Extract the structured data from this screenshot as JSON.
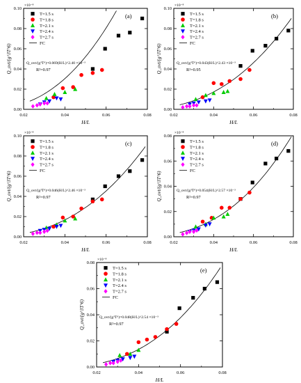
{
  "figure": {
    "xlabel_main": "H/L"
  },
  "chart_data": [
    {
      "id": "a",
      "type": "scatter",
      "panel_label": "(a)",
      "xlabel": "H/L",
      "ylabel": "Q_ovt/(g^3T^6)",
      "y_multiplier": "×10⁻⁸",
      "xlim": [
        0.02,
        0.08
      ],
      "ylim": [
        0.0,
        0.1
      ],
      "xticks": [
        "0.02",
        "0.04",
        "0.06",
        "0.08"
      ],
      "yticks": [
        "0.00",
        "0.02",
        "0.04",
        "0.06",
        "0.08",
        "0.10"
      ],
      "equation": "Q_ovt/(g³T⁶)=0.069(H/L)^2.40 ×10⁻³",
      "r2": "R²=0.97",
      "legend_position": "top-left",
      "series": [
        {
          "name": "T=1.5 s",
          "marker": "square",
          "color": "#000000",
          "x": [
            0.0535,
            0.0595,
            0.066,
            0.0715,
            0.0775
          ],
          "y": [
            0.04,
            0.06,
            0.073,
            0.076,
            0.09
          ]
        },
        {
          "name": "T=1.8 s",
          "marker": "circle",
          "color": "#ff0000",
          "x": [
            0.0345,
            0.039,
            0.044,
            0.048,
            0.0535,
            0.058
          ],
          "y": [
            0.012,
            0.021,
            0.022,
            0.034,
            0.036,
            0.039
          ]
        },
        {
          "name": "T=2.1 s",
          "marker": "triangle-up",
          "color": "#00cc00",
          "x": [
            0.031,
            0.035,
            0.04,
            0.045
          ],
          "y": [
            0.011,
            0.015,
            0.017,
            0.02
          ]
        },
        {
          "name": "T=2.4 s",
          "marker": "triangle-down",
          "color": "#0000ff",
          "x": [
            0.028,
            0.03,
            0.0325,
            0.036,
            0.038
          ],
          "y": [
            0.005,
            0.007,
            0.008,
            0.011,
            0.01
          ]
        },
        {
          "name": "T=2.7 s",
          "marker": "diamond",
          "color": "#ff00ff",
          "x": [
            0.0245,
            0.0265,
            0.028,
            0.03,
            0.0315
          ],
          "y": [
            0.003,
            0.004,
            0.005,
            0.006,
            0.006
          ]
        }
      ],
      "fit": {
        "name": "FC",
        "coef": 0.069,
        "exp": 2.4
      }
    },
    {
      "id": "b",
      "type": "scatter",
      "panel_label": "(b)",
      "xlabel": "H/L",
      "ylabel": "Q_ovt/(g^3T^6)",
      "y_multiplier": "×10⁻⁸",
      "xlim": [
        0.02,
        0.08
      ],
      "ylim": [
        0.0,
        0.1
      ],
      "xticks": [
        "0.02",
        "0.04",
        "0.06",
        "0.08"
      ],
      "yticks": [
        "0.00",
        "0.02",
        "0.04",
        "0.06",
        "0.08",
        "0.10"
      ],
      "equation": "Q_ovt/(g³T⁶)=0.043(H/L)^2.43 ×10⁻³",
      "r2": "R²=0.95",
      "legend_position": "top-left",
      "series": [
        {
          "name": "T=1.5 s",
          "marker": "square",
          "color": "#000000",
          "x": [
            0.0535,
            0.0595,
            0.066,
            0.0715,
            0.0775
          ],
          "y": [
            0.043,
            0.058,
            0.063,
            0.07,
            0.078
          ]
        },
        {
          "name": "T=1.8 s",
          "marker": "circle",
          "color": "#ff0000",
          "x": [
            0.0345,
            0.04,
            0.044,
            0.048,
            0.0535,
            0.058
          ],
          "y": [
            0.012,
            0.026,
            0.025,
            0.028,
            0.03,
            0.039
          ]
        },
        {
          "name": "T=2.1 s",
          "marker": "triangle-up",
          "color": "#00cc00",
          "x": [
            0.031,
            0.036,
            0.04,
            0.045,
            0.047
          ],
          "y": [
            0.01,
            0.014,
            0.016,
            0.017,
            0.018
          ]
        },
        {
          "name": "T=2.4 s",
          "marker": "triangle-down",
          "color": "#0000ff",
          "x": [
            0.028,
            0.03,
            0.0325,
            0.036,
            0.038
          ],
          "y": [
            0.005,
            0.006,
            0.007,
            0.008,
            0.009
          ]
        },
        {
          "name": "T=2.7 s",
          "marker": "diamond",
          "color": "#ff00ff",
          "x": [
            0.0245,
            0.0265,
            0.028,
            0.03,
            0.0315
          ],
          "y": [
            0.002,
            0.003,
            0.003,
            0.004,
            0.004
          ]
        }
      ],
      "fit": {
        "name": "FC",
        "coef": 0.043,
        "exp": 2.43
      }
    },
    {
      "id": "c",
      "type": "scatter",
      "panel_label": "(c)",
      "xlabel": "H/L",
      "ylabel": "Q_ovt/(g^3T^6)",
      "y_multiplier": "×10⁻⁸",
      "xlim": [
        0.02,
        0.08
      ],
      "ylim": [
        0.0,
        0.1
      ],
      "xticks": [
        "0.02",
        "0.04",
        "0.06",
        "0.08"
      ],
      "yticks": [
        "0.00",
        "0.02",
        "0.04",
        "0.06",
        "0.08",
        "0.10"
      ],
      "equation": "Q_ovt/(g³T⁶)=0.046(H/L)^2.46 ×10⁻³",
      "r2": "R²=0.97",
      "legend_position": "top-left",
      "series": [
        {
          "name": "T=1.5 s",
          "marker": "square",
          "color": "#000000",
          "x": [
            0.0535,
            0.0595,
            0.066,
            0.0715,
            0.0775
          ],
          "y": [
            0.037,
            0.05,
            0.06,
            0.065,
            0.076
          ]
        },
        {
          "name": "T=1.8 s",
          "marker": "circle",
          "color": "#ff0000",
          "x": [
            0.0345,
            0.039,
            0.044,
            0.048,
            0.0535,
            0.058
          ],
          "y": [
            0.01,
            0.019,
            0.02,
            0.028,
            0.035,
            0.037
          ]
        },
        {
          "name": "T=2.1 s",
          "marker": "triangle-up",
          "color": "#00cc00",
          "x": [
            0.031,
            0.036,
            0.04,
            0.045
          ],
          "y": [
            0.009,
            0.012,
            0.016,
            0.018
          ]
        },
        {
          "name": "T=2.4 s",
          "marker": "triangle-down",
          "color": "#0000ff",
          "x": [
            0.028,
            0.03,
            0.0325,
            0.036,
            0.038
          ],
          "y": [
            0.006,
            0.007,
            0.008,
            0.01,
            0.011
          ]
        },
        {
          "name": "T=2.7 s",
          "marker": "diamond",
          "color": "#ff00ff",
          "x": [
            0.0245,
            0.0265,
            0.028,
            0.03,
            0.0315
          ],
          "y": [
            0.003,
            0.004,
            0.004,
            0.005,
            0.006
          ]
        }
      ],
      "fit": {
        "name": "FC",
        "coef": 0.046,
        "exp": 2.46
      }
    },
    {
      "id": "d",
      "type": "scatter",
      "panel_label": "(d)",
      "xlabel": "H/L",
      "ylabel": "Q_ovt/(g^3T^6)",
      "y_multiplier": "×10⁻⁸",
      "xlim": [
        0.02,
        0.08
      ],
      "ylim": [
        0.0,
        0.08
      ],
      "xticks": [
        "0.02",
        "0.04",
        "0.06",
        "0.08"
      ],
      "yticks": [
        "0.00",
        "0.02",
        "0.04",
        "0.06",
        "0.08"
      ],
      "equation": "Q_ovt/(g³T⁶)=0.054(H/L)^2.57 ×10⁻³",
      "r2": "R²=0.97",
      "legend_position": "top-left",
      "series": [
        {
          "name": "T=1.5 s",
          "marker": "square",
          "color": "#000000",
          "x": [
            0.0535,
            0.0595,
            0.066,
            0.0715,
            0.0775
          ],
          "y": [
            0.03,
            0.043,
            0.058,
            0.062,
            0.068
          ]
        },
        {
          "name": "T=1.8 s",
          "marker": "circle",
          "color": "#ff0000",
          "x": [
            0.0345,
            0.039,
            0.044,
            0.048,
            0.0535,
            0.058
          ],
          "y": [
            0.012,
            0.015,
            0.023,
            0.023,
            0.03,
            0.035
          ]
        },
        {
          "name": "T=2.1 s",
          "marker": "triangle-up",
          "color": "#00cc00",
          "x": [
            0.031,
            0.036,
            0.04,
            0.045,
            0.047
          ],
          "y": [
            0.008,
            0.01,
            0.015,
            0.016,
            0.018
          ]
        },
        {
          "name": "T=2.4 s",
          "marker": "triangle-down",
          "color": "#0000ff",
          "x": [
            0.028,
            0.03,
            0.0325,
            0.036,
            0.038
          ],
          "y": [
            0.004,
            0.005,
            0.006,
            0.009,
            0.01
          ]
        },
        {
          "name": "T=2.7 s",
          "marker": "diamond",
          "color": "#ff00ff",
          "x": [
            0.0245,
            0.0265,
            0.028,
            0.03,
            0.0315
          ],
          "y": [
            0.002,
            0.003,
            0.004,
            0.004,
            0.005
          ]
        }
      ],
      "fit": {
        "name": "FC",
        "coef": 0.054,
        "exp": 2.57
      }
    },
    {
      "id": "e",
      "type": "scatter",
      "panel_label": "(e)",
      "xlabel": "H/L",
      "ylabel": "Q_ovt/(g^3T^6)",
      "y_multiplier": "×10⁻⁸",
      "xlim": [
        0.02,
        0.08
      ],
      "ylim": [
        0.0,
        0.08
      ],
      "xticks": [
        "0.02",
        "0.04",
        "0.06",
        "0.08"
      ],
      "yticks": [
        "0.00",
        "0.02",
        "0.04",
        "0.06",
        "0.08"
      ],
      "equation": "Q_ovt/(g³T⁶)=0.048(H/L)^2.54 ×10⁻³",
      "r2": "R²=0.97",
      "legend_position": "top-left",
      "series": [
        {
          "name": "T=1.5 s",
          "marker": "square",
          "color": "#000000",
          "x": [
            0.0535,
            0.0595,
            0.066,
            0.0715,
            0.0775
          ],
          "y": [
            0.027,
            0.045,
            0.053,
            0.06,
            0.065
          ]
        },
        {
          "name": "T=1.8 s",
          "marker": "circle",
          "color": "#ff0000",
          "x": [
            0.0345,
            0.04,
            0.044,
            0.048,
            0.0535,
            0.058
          ],
          "y": [
            0.01,
            0.019,
            0.021,
            0.023,
            0.029,
            0.033
          ]
        },
        {
          "name": "T=2.1 s",
          "marker": "triangle-up",
          "color": "#00cc00",
          "x": [
            0.031,
            0.036,
            0.04
          ],
          "y": [
            0.009,
            0.01,
            0.013
          ]
        },
        {
          "name": "T=2.4 s",
          "marker": "triangle-down",
          "color": "#0000ff",
          "x": [
            0.028,
            0.03,
            0.0325,
            0.036,
            0.038
          ],
          "y": [
            0.004,
            0.005,
            0.006,
            0.007,
            0.008
          ]
        },
        {
          "name": "T=2.7 s",
          "marker": "diamond",
          "color": "#ff00ff",
          "x": [
            0.0245,
            0.0265,
            0.028,
            0.03,
            0.0315
          ],
          "y": [
            0.002,
            0.003,
            0.003,
            0.004,
            0.005
          ]
        }
      ],
      "fit": {
        "name": "FC",
        "coef": 0.048,
        "exp": 2.54
      }
    }
  ]
}
